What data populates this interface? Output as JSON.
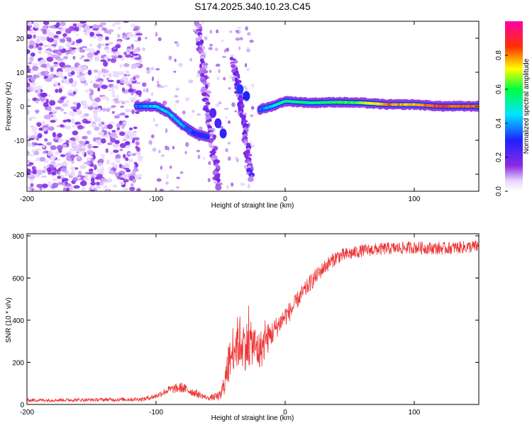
{
  "chart_data": [
    {
      "type": "heatmap",
      "title": "S174.2025.340.10.23.C45",
      "xlabel": "Height of straight line (km)",
      "ylabel": "Frequency (Hz)",
      "xlim": [
        -200,
        150
      ],
      "ylim": [
        -25,
        25
      ],
      "xticks": [
        -200,
        -100,
        0,
        100
      ],
      "xtick_labels": [
        "-200",
        "-100",
        "0",
        "100"
      ],
      "yticks": [
        -20,
        -10,
        0,
        10,
        20
      ],
      "ytick_labels": [
        "-20",
        "-10",
        "0",
        "10",
        "20"
      ],
      "colorbar": {
        "label": "Normalized spectral amplitude",
        "range": [
          0,
          1
        ],
        "ticks": [
          0,
          0.2,
          0.4,
          0.6,
          0.8
        ],
        "tick_labels": [
          "0.0",
          "0.2",
          "0.4",
          "0.6",
          "0.8"
        ],
        "colormap": "rainbow (white-violet-blue-cyan-green-yellow-red-magenta)"
      },
      "features": {
        "noise_region": "scattered violet speckles for heights -200 to -115 km across all frequencies",
        "carrier_ridge": [
          {
            "x": -115,
            "f": 0.0,
            "amp": 0.35
          },
          {
            "x": -100,
            "f": 0.0,
            "amp": 0.45
          },
          {
            "x": -90,
            "f": -2.0,
            "amp": 0.45
          },
          {
            "x": -80,
            "f": -5.5,
            "amp": 0.4
          },
          {
            "x": -70,
            "f": -8.0,
            "amp": 0.3
          },
          {
            "x": -60,
            "f": -9.0,
            "amp": 0.25
          },
          {
            "x": -20,
            "f": -1.0,
            "amp": 0.35
          },
          {
            "x": -10,
            "f": 0.0,
            "amp": 0.45
          },
          {
            "x": 0,
            "f": 1.5,
            "amp": 0.55
          },
          {
            "x": 20,
            "f": 1.0,
            "amp": 0.55
          },
          {
            "x": 40,
            "f": 1.2,
            "amp": 0.6
          },
          {
            "x": 60,
            "f": 1.0,
            "amp": 0.65
          },
          {
            "x": 80,
            "f": 0.5,
            "amp": 0.8
          },
          {
            "x": 100,
            "f": 0.5,
            "amp": 0.75
          },
          {
            "x": 120,
            "f": 0.0,
            "amp": 0.85
          },
          {
            "x": 150,
            "f": 0.0,
            "amp": 0.8
          }
        ]
      }
    },
    {
      "type": "line",
      "title": "",
      "xlabel": "Height of straight line (km)",
      "ylabel": "SNR (10 * v/v)",
      "xlim": [
        -200,
        150
      ],
      "ylim": [
        0,
        810
      ],
      "xticks": [
        -200,
        -100,
        0,
        100
      ],
      "xtick_labels": [
        "-200",
        "-100",
        "0",
        "100"
      ],
      "yticks": [
        0,
        200,
        400,
        600,
        800
      ],
      "ytick_labels": [
        "0",
        "200",
        "400",
        "600",
        "800"
      ],
      "color": "#ee3333",
      "series": [
        {
          "name": "SNR",
          "x": [
            -200,
            -150,
            -110,
            -100,
            -90,
            -80,
            -70,
            -60,
            -50,
            -45,
            -40,
            -35,
            -30,
            -25,
            -20,
            -15,
            -10,
            -5,
            0,
            5,
            10,
            20,
            30,
            40,
            60,
            80,
            100,
            120,
            150
          ],
          "y": [
            20,
            22,
            25,
            40,
            70,
            80,
            55,
            30,
            40,
            150,
            280,
            300,
            280,
            290,
            250,
            300,
            340,
            380,
            420,
            450,
            500,
            580,
            650,
            700,
            730,
            740,
            745,
            740,
            750
          ],
          "noise": [
            8,
            8,
            10,
            12,
            20,
            25,
            20,
            10,
            25,
            80,
            120,
            130,
            120,
            100,
            100,
            80,
            60,
            50,
            50,
            45,
            40,
            40,
            35,
            35,
            30,
            30,
            30,
            30,
            30
          ]
        }
      ]
    }
  ]
}
